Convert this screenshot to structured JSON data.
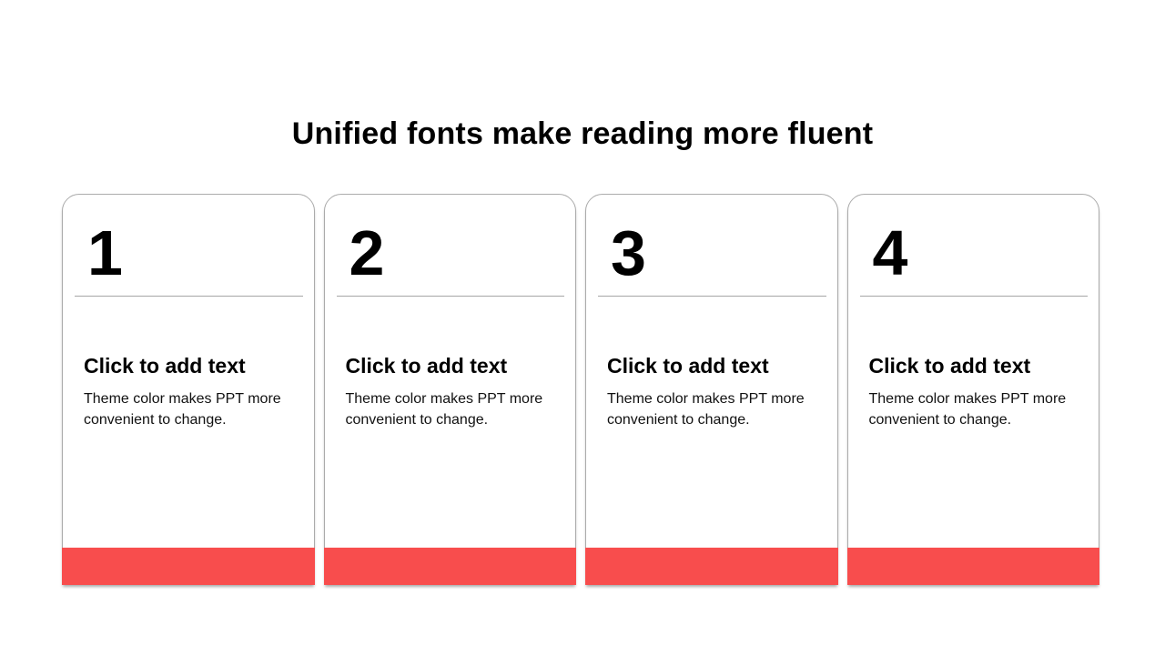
{
  "slide": {
    "title": "Unified fonts make reading more fluent",
    "colors": {
      "accent": "#F84D4D",
      "card_border": "#ABABAB",
      "divider": "#A6A6A6",
      "background": "#FFFFFF",
      "text": "#000000"
    },
    "cards": [
      {
        "number": "1",
        "heading": "Click to add text",
        "body": "Theme color makes PPT more convenient to change."
      },
      {
        "number": "2",
        "heading": "Click to add text",
        "body": "Theme color makes PPT more convenient to change."
      },
      {
        "number": "3",
        "heading": "Click to add text",
        "body": "Theme color makes PPT more convenient to change."
      },
      {
        "number": "4",
        "heading": "Click to add text",
        "body": "Theme color makes PPT more convenient to change."
      }
    ]
  }
}
